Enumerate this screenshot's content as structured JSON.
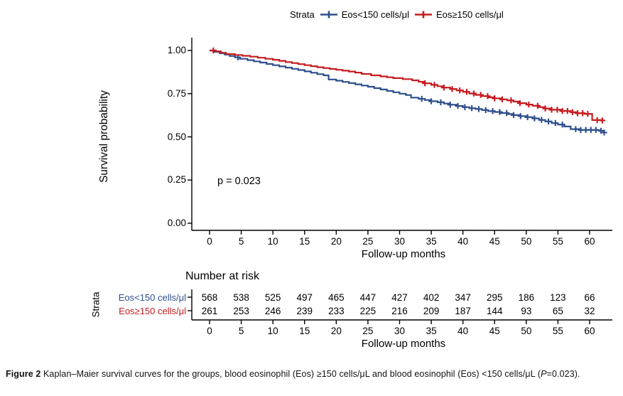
{
  "figure": {
    "legend": {
      "title": "Strata",
      "items": [
        {
          "label": "Eos<150 cells/μl",
          "color": "#2E4E8C"
        },
        {
          "label": "Eos≥150 cells/μl",
          "color": "#C51B1E"
        }
      ]
    },
    "p_value": "p = 0.023",
    "caption": {
      "tag": "Figure 2",
      "body": " Kaplan–Maier survival curves for the groups, blood eosinophil (Eos) ≥150 cells/μL and blood eosinophil (Eos) <150 cells/μL (",
      "p": "P",
      "tail": "=0.023)."
    }
  },
  "chart_data": {
    "type": "line",
    "subtype": "kaplan-meier-step-curves",
    "title": "",
    "xlabel": "Follow-up months",
    "ylabel": "Survival probability",
    "xlim": [
      0,
      63
    ],
    "ylim": [
      0,
      1.0
    ],
    "x_ticks": [
      0,
      5,
      10,
      15,
      20,
      25,
      30,
      35,
      40,
      45,
      50,
      55,
      60
    ],
    "y_ticks": [
      {
        "v": 1.0,
        "label": "1.00"
      },
      {
        "v": 0.75,
        "label": "0.75"
      },
      {
        "v": 0.5,
        "label": "0.50"
      },
      {
        "v": 0.25,
        "label": "0.25"
      },
      {
        "v": 0.0,
        "label": "0.00"
      }
    ],
    "grid": false,
    "legend_position": "top",
    "annotation": "p = 0.023",
    "series": [
      {
        "name": "Eos<150 cells/μl",
        "color": "#2E4E8C",
        "points": [
          [
            0,
            1.0
          ],
          [
            0.8,
            0.992
          ],
          [
            1.6,
            0.984
          ],
          [
            2.4,
            0.976
          ],
          [
            3.2,
            0.968
          ],
          [
            4,
            0.96
          ],
          [
            4.8,
            0.952
          ],
          [
            6,
            0.944
          ],
          [
            7,
            0.937
          ],
          [
            8,
            0.93
          ],
          [
            9,
            0.922
          ],
          [
            10,
            0.915
          ],
          [
            11,
            0.908
          ],
          [
            12,
            0.901
          ],
          [
            13,
            0.894
          ],
          [
            14,
            0.887
          ],
          [
            15,
            0.879
          ],
          [
            16,
            0.871
          ],
          [
            17,
            0.863
          ],
          [
            18,
            0.856
          ],
          [
            18.8,
            0.832
          ],
          [
            20,
            0.825
          ],
          [
            21,
            0.818
          ],
          [
            22,
            0.811
          ],
          [
            23,
            0.804
          ],
          [
            24,
            0.797
          ],
          [
            25,
            0.79
          ],
          [
            26,
            0.782
          ],
          [
            27,
            0.774
          ],
          [
            28,
            0.766
          ],
          [
            29,
            0.758
          ],
          [
            30,
            0.75
          ],
          [
            31,
            0.742
          ],
          [
            31.8,
            0.727
          ],
          [
            33,
            0.72
          ],
          [
            34,
            0.713
          ],
          [
            35,
            0.706
          ],
          [
            36,
            0.7
          ],
          [
            37,
            0.693
          ],
          [
            38,
            0.686
          ],
          [
            39,
            0.679
          ],
          [
            40,
            0.672
          ],
          [
            41,
            0.666
          ],
          [
            42,
            0.661
          ],
          [
            43,
            0.655
          ],
          [
            44,
            0.649
          ],
          [
            45,
            0.644
          ],
          [
            46,
            0.638
          ],
          [
            47,
            0.632
          ],
          [
            48,
            0.626
          ],
          [
            49,
            0.62
          ],
          [
            50,
            0.614
          ],
          [
            51,
            0.607
          ],
          [
            52,
            0.598
          ],
          [
            53,
            0.589
          ],
          [
            54,
            0.58
          ],
          [
            55,
            0.571
          ],
          [
            56,
            0.56
          ],
          [
            57,
            0.545
          ],
          [
            58.5,
            0.54
          ],
          [
            61.5,
            0.535
          ],
          [
            62.3,
            0.525
          ]
        ],
        "censor_times": [
          4.5,
          33.5,
          35,
          36.5,
          38,
          39.2,
          40.3,
          41.4,
          42.5,
          43.6,
          44.7,
          45.8,
          46.9,
          48,
          49.1,
          50.2,
          51.3,
          52.4,
          53.5,
          54.6,
          55.7,
          57.8,
          58.6,
          59.4,
          60.2,
          61,
          61.8,
          62.3
        ]
      },
      {
        "name": "Eos≥150 cells/μl",
        "color": "#C51B1E",
        "points": [
          [
            0,
            1.0
          ],
          [
            1,
            0.995
          ],
          [
            1.8,
            0.987
          ],
          [
            2.6,
            0.979
          ],
          [
            4,
            0.974
          ],
          [
            5.2,
            0.969
          ],
          [
            6.4,
            0.964
          ],
          [
            7.6,
            0.958
          ],
          [
            8.8,
            0.952
          ],
          [
            10,
            0.946
          ],
          [
            11,
            0.94
          ],
          [
            12,
            0.933
          ],
          [
            13,
            0.927
          ],
          [
            14,
            0.921
          ],
          [
            15,
            0.915
          ],
          [
            16,
            0.909
          ],
          [
            17,
            0.903
          ],
          [
            18,
            0.898
          ],
          [
            19,
            0.893
          ],
          [
            20,
            0.888
          ],
          [
            21,
            0.883
          ],
          [
            22,
            0.878
          ],
          [
            23,
            0.872
          ],
          [
            24,
            0.864
          ],
          [
            25.5,
            0.856
          ],
          [
            27,
            0.85
          ],
          [
            28,
            0.845
          ],
          [
            29,
            0.84
          ],
          [
            30.5,
            0.834
          ],
          [
            32,
            0.827
          ],
          [
            33,
            0.819
          ],
          [
            34,
            0.81
          ],
          [
            35,
            0.801
          ],
          [
            36,
            0.793
          ],
          [
            37,
            0.785
          ],
          [
            38,
            0.777
          ],
          [
            39,
            0.769
          ],
          [
            40,
            0.761
          ],
          [
            41,
            0.751
          ],
          [
            42,
            0.743
          ],
          [
            43,
            0.736
          ],
          [
            44,
            0.729
          ],
          [
            45,
            0.723
          ],
          [
            46,
            0.717
          ],
          [
            47,
            0.711
          ],
          [
            48,
            0.704
          ],
          [
            49,
            0.695
          ],
          [
            50,
            0.687
          ],
          [
            51,
            0.68
          ],
          [
            52,
            0.672
          ],
          [
            53,
            0.664
          ],
          [
            54,
            0.657
          ],
          [
            55.5,
            0.65
          ],
          [
            57,
            0.643
          ],
          [
            58,
            0.637
          ],
          [
            59.2,
            0.633
          ],
          [
            60.4,
            0.597
          ],
          [
            62,
            0.595
          ]
        ],
        "censor_times": [
          0.6,
          34,
          35.5,
          37,
          38.3,
          39.5,
          40.6,
          41.7,
          42.8,
          43.9,
          45,
          46.2,
          47.6,
          49,
          50.4,
          51.8,
          53,
          54,
          54.9,
          55.7,
          56.5,
          57.3,
          58.1,
          58.9,
          59.7,
          61.2,
          62
        ]
      }
    ],
    "risk_table": {
      "title": "Number at risk",
      "strata_label": "Strata",
      "xlabel": "Follow-up months",
      "times": [
        0,
        5,
        10,
        15,
        20,
        25,
        30,
        35,
        40,
        45,
        50,
        55,
        60
      ],
      "rows": [
        {
          "label": "Eos<150 cells/μl",
          "color": "#2E4E8C",
          "values": [
            568,
            538,
            525,
            497,
            465,
            447,
            427,
            402,
            347,
            295,
            186,
            123,
            66
          ]
        },
        {
          "label": "Eos≥150 cells/μl",
          "color": "#C51B1E",
          "values": [
            261,
            253,
            246,
            239,
            233,
            225,
            216,
            209,
            187,
            144,
            93,
            65,
            32
          ]
        }
      ]
    }
  }
}
